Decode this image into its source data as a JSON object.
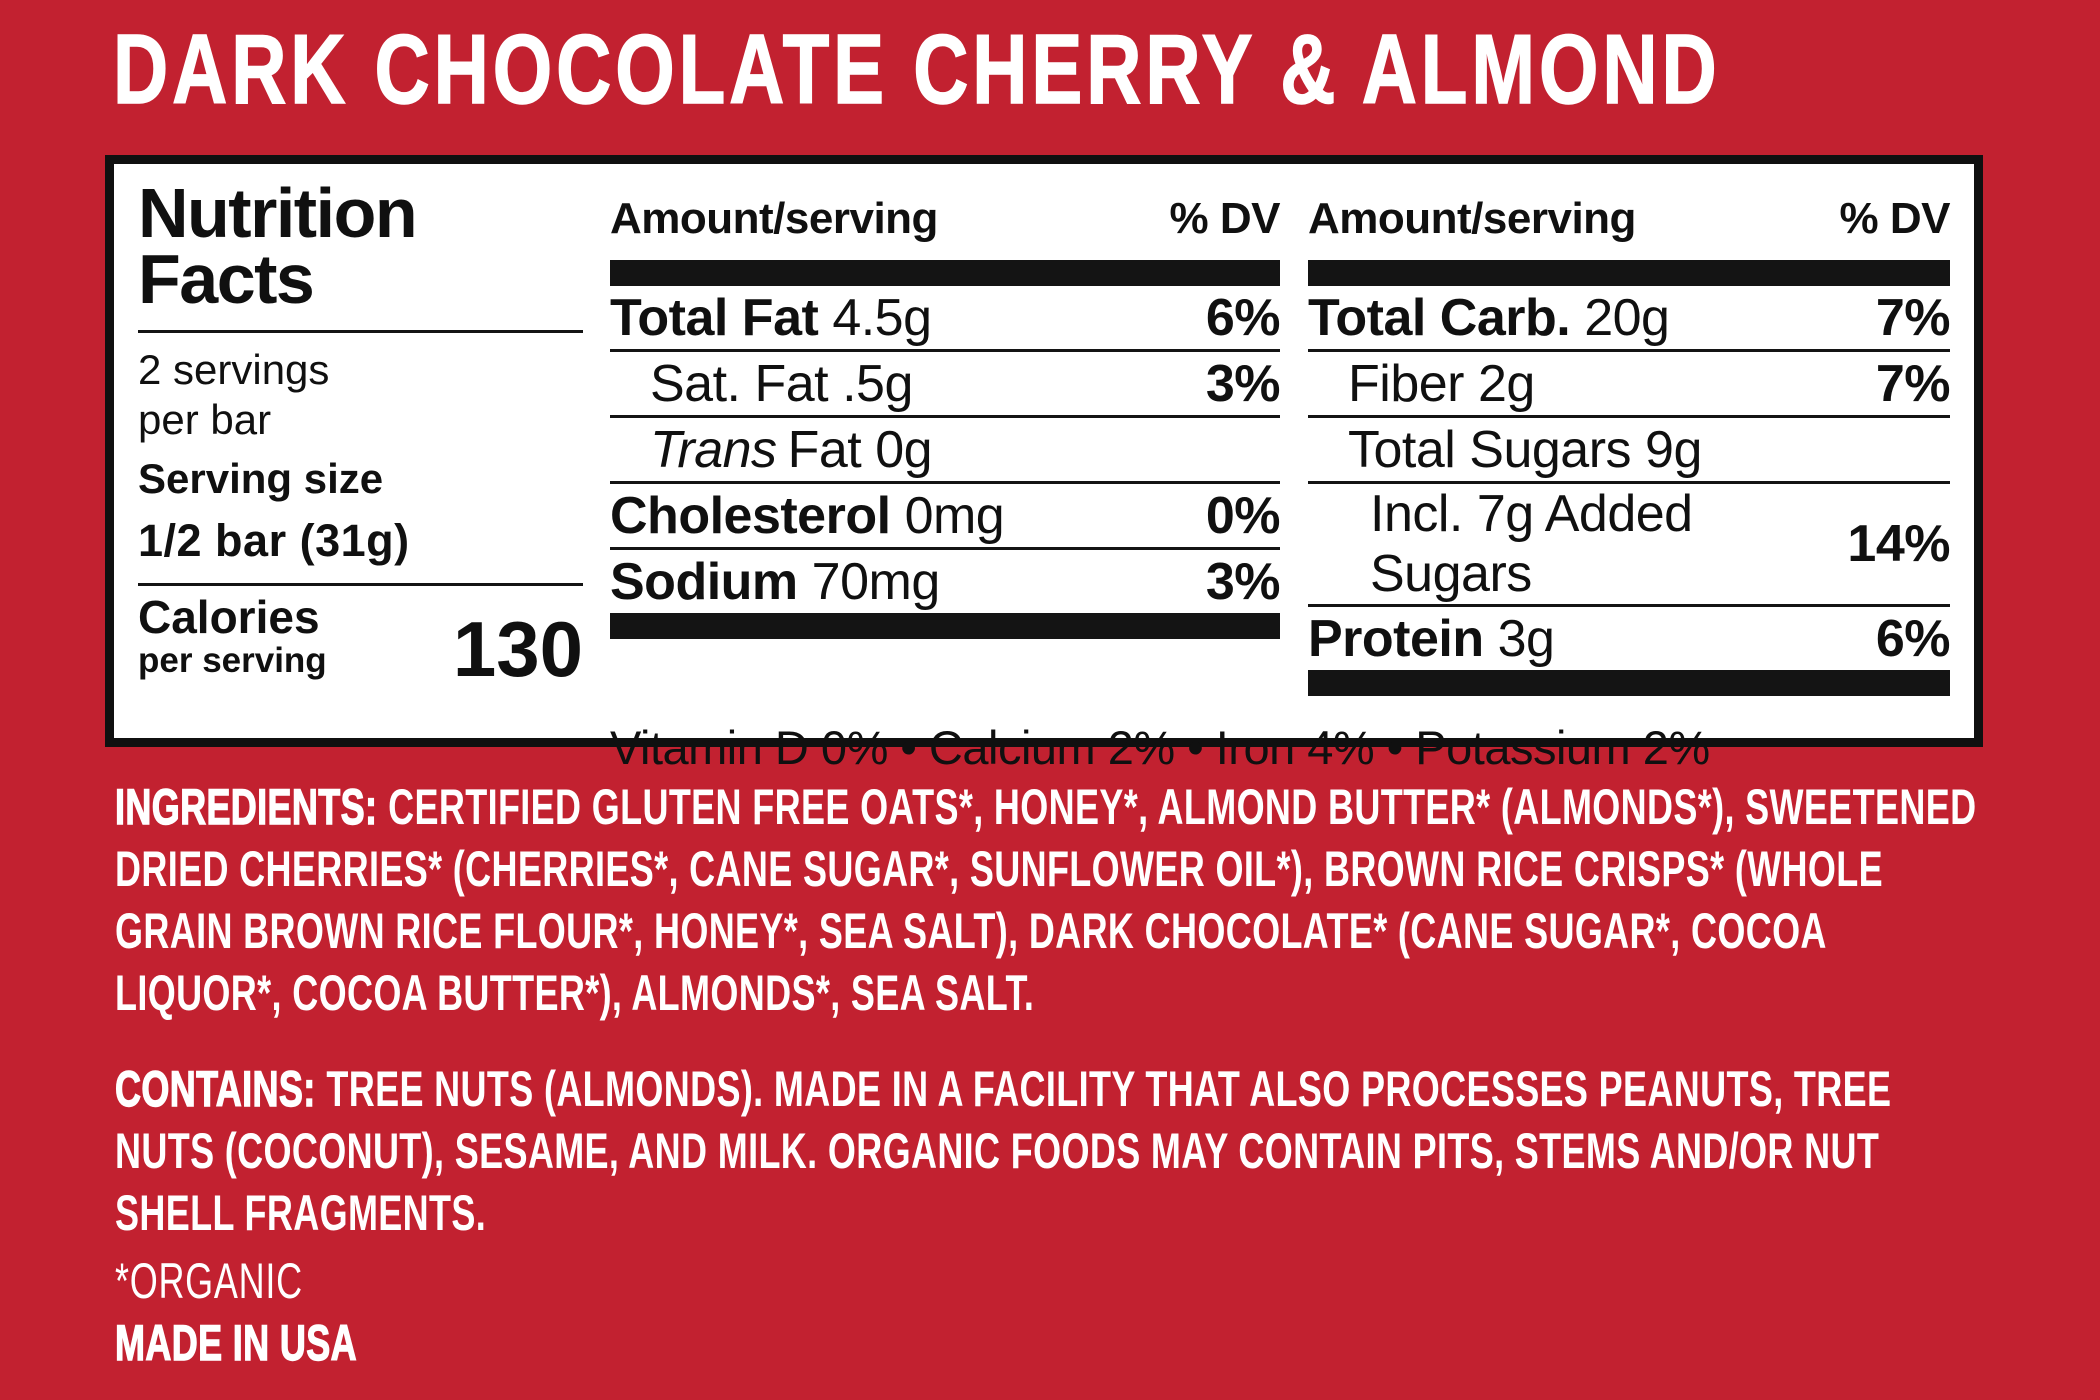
{
  "colors": {
    "background_red": "#C22130",
    "panel_background": "#FFFFFF",
    "panel_border_black": "#101010",
    "text_white": "#FFFFFF"
  },
  "title": "DARK CHOCOLATE CHERRY & ALMOND",
  "panel": {
    "heading_line1": "Nutrition",
    "heading_line2": "Facts",
    "servings_line1": "2 servings",
    "servings_line2": "per bar",
    "serving_size_label": "Serving size",
    "serving_size_value": "1/2 bar (31g)",
    "calories_label": "Calories",
    "calories_sublabel": "per serving",
    "calories_value": "130",
    "col2": {
      "header_amount": "Amount/serving",
      "header_dv": "% DV",
      "rows": [
        {
          "label": "Total Fat",
          "value": "4.5g",
          "dv": "6%"
        },
        {
          "label": "Sat. Fat",
          "value": ".5g",
          "dv": "3%"
        },
        {
          "label_italic": "Trans",
          "label": "Fat",
          "value": "0g",
          "dv": ""
        },
        {
          "label": "Cholesterol",
          "value": "0mg",
          "dv": "0%"
        },
        {
          "label": "Sodium",
          "value": "70mg",
          "dv": "3%"
        }
      ]
    },
    "col3": {
      "header_amount": "Amount/serving",
      "header_dv": "% DV",
      "rows": [
        {
          "label": "Total Carb.",
          "value": "20g",
          "dv": "7%"
        },
        {
          "label": "Fiber",
          "value": "2g",
          "dv": "7%"
        },
        {
          "label": "Total Sugars",
          "value": "9g",
          "dv": ""
        },
        {
          "label": "Incl. 7g Added Sugars",
          "value": "",
          "dv": "14%"
        },
        {
          "label": "Protein",
          "value": "3g",
          "dv": "6%"
        }
      ]
    },
    "micronutrients": "Vitamin D 0% • Calcium 2% • Iron 4% • Potassium 2%"
  },
  "ingredients": {
    "lead": "INGREDIENTS:",
    "text": "CERTIFIED GLUTEN FREE OATS*, HONEY*, ALMOND BUTTER* (ALMONDS*), SWEETENED DRIED CHERRIES* (CHERRIES*, CANE SUGAR*, SUNFLOWER OIL*), BROWN RICE CRISPS* (WHOLE GRAIN BROWN RICE FLOUR*, HONEY*, SEA SALT), DARK CHOCOLATE* (CANE SUGAR*, COCOA LIQUOR*, COCOA BUTTER*), ALMONDS*, SEA SALT."
  },
  "contains": {
    "lead": "CONTAINS:",
    "text": "TREE NUTS (ALMONDS). MADE IN A FACILITY THAT ALSO PROCESSES PEANUTS, TREE NUTS (COCONUT), SESAME, AND MILK. ORGANIC FOODS MAY CONTAIN PITS, STEMS AND/OR NUT SHELL FRAGMENTS."
  },
  "footnotes": {
    "organic_note": "*ORGANIC",
    "made_in": "MADE IN USA"
  }
}
